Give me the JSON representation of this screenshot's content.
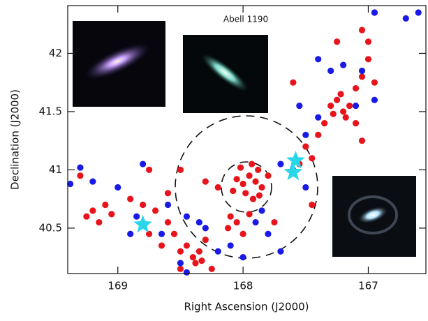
{
  "chart_data": {
    "type": "scatter",
    "title": "Abell 1190",
    "xlabel": "Right Ascension (J2000)",
    "ylabel": "Declination (J2000)",
    "xlim": [
      169.4,
      166.54
    ],
    "ylim": [
      40.11,
      42.41
    ],
    "xticks": [
      169,
      168,
      167
    ],
    "yticks": [
      40.5,
      41,
      41.5,
      42
    ],
    "series": [
      {
        "color": "#e8141c",
        "marker": "circle",
        "x": [
          167.95,
          167.9,
          168.0,
          167.85,
          167.98,
          167.92,
          168.05,
          167.88,
          167.8,
          168.02,
          167.93,
          167.87,
          168.08,
          168.1,
          168.05,
          168.12,
          167.95,
          168.0,
          168.3,
          168.35,
          168.4,
          168.45,
          168.38,
          168.33,
          168.5,
          168.55,
          168.6,
          168.7,
          168.8,
          168.9,
          169.1,
          169.2,
          169.25,
          169.15,
          169.05,
          168.75,
          168.65,
          168.5,
          168.3,
          168.2,
          167.55,
          167.45,
          167.5,
          167.4,
          167.35,
          167.3,
          167.25,
          167.2,
          167.15,
          167.28,
          167.22,
          167.18,
          167.1,
          167.05,
          167.0,
          167.05,
          167.0,
          166.95,
          167.1,
          167.05,
          168.75,
          168.6,
          169.3,
          167.45,
          167.75,
          167.6,
          167.25,
          166.95,
          168.5,
          168.25
        ],
        "values": [
          40.95,
          40.9,
          40.88,
          40.85,
          40.8,
          40.75,
          40.92,
          41.0,
          40.95,
          41.02,
          41.05,
          40.78,
          40.82,
          40.6,
          40.55,
          40.5,
          40.62,
          40.45,
          40.4,
          40.3,
          40.25,
          40.35,
          40.2,
          40.22,
          40.3,
          40.45,
          40.55,
          40.65,
          40.7,
          40.75,
          40.7,
          40.65,
          40.6,
          40.55,
          40.62,
          40.45,
          40.35,
          41.0,
          40.9,
          40.85,
          41.05,
          41.1,
          41.2,
          41.3,
          41.4,
          41.55,
          41.6,
          41.5,
          41.55,
          41.48,
          41.65,
          41.45,
          41.7,
          41.8,
          41.95,
          42.2,
          42.1,
          41.75,
          41.4,
          41.25,
          41.0,
          40.8,
          40.95,
          40.7,
          40.55,
          41.75,
          42.1,
          42.35,
          40.15,
          40.15
        ]
      },
      {
        "color": "#1a1ae6",
        "marker": "circle",
        "x": [
          169.38,
          169.3,
          169.2,
          169.0,
          168.8,
          168.85,
          168.9,
          168.6,
          168.45,
          168.3,
          168.5,
          168.45,
          168.2,
          168.1,
          168.0,
          167.9,
          167.8,
          167.7,
          167.7,
          167.6,
          167.5,
          167.5,
          167.4,
          167.55,
          167.4,
          167.3,
          167.1,
          166.95,
          167.05,
          166.95,
          166.7,
          166.6,
          167.2,
          168.65,
          168.35,
          167.85
        ],
        "values": [
          40.88,
          41.02,
          40.9,
          40.85,
          41.05,
          40.6,
          40.45,
          40.7,
          40.6,
          40.5,
          40.2,
          40.12,
          40.3,
          40.35,
          40.25,
          40.55,
          40.45,
          40.3,
          41.05,
          41.0,
          40.85,
          41.3,
          41.45,
          41.55,
          41.95,
          41.85,
          41.55,
          41.6,
          41.85,
          42.35,
          42.3,
          42.35,
          41.9,
          40.45,
          40.55,
          40.65
        ]
      },
      {
        "color": "#2ad6ea",
        "marker": "star",
        "x": [
          168.8,
          167.58,
          167.6
        ],
        "values": [
          40.53,
          41.08,
          40.98
        ]
      }
    ]
  }
}
